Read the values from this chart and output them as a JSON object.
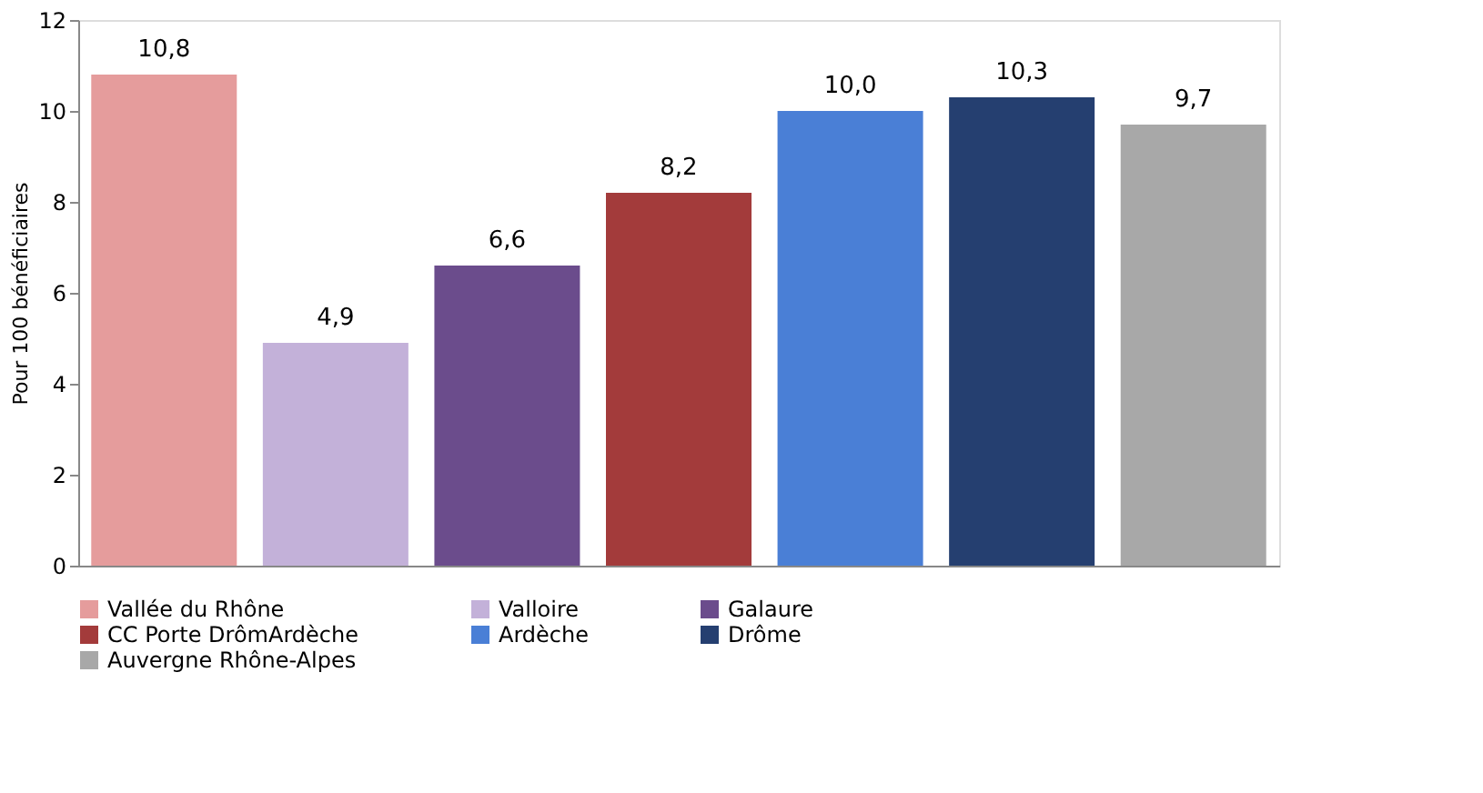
{
  "chart_data": {
    "type": "bar",
    "ylabel": "Pour 100 bénéficiaires",
    "categories": [
      null,
      null,
      null,
      null,
      null,
      null,
      null
    ],
    "ylim": [
      0,
      12
    ],
    "yticks": [
      0,
      2,
      4,
      6,
      8,
      10,
      12
    ],
    "grid": false,
    "legend": "bottom",
    "tick_labels": "y",
    "series": [
      {
        "name": "Vallée du Rhône",
        "color": "#e59c9c",
        "values": [
          10.8,
          null,
          null,
          null,
          null,
          null,
          null
        ],
        "value_labels": [
          "10,8",
          null,
          null,
          null,
          null,
          null,
          null
        ]
      },
      {
        "name": "Valloire",
        "color": "#c3b1d9",
        "values": [
          null,
          4.9,
          null,
          null,
          null,
          null,
          null
        ],
        "value_labels": [
          null,
          "4,9",
          null,
          null,
          null,
          null,
          null
        ]
      },
      {
        "name": "Galaure",
        "color": "#6b4c8c",
        "values": [
          null,
          null,
          6.6,
          null,
          null,
          null,
          null
        ],
        "value_labels": [
          null,
          null,
          "6,6",
          null,
          null,
          null,
          null
        ]
      },
      {
        "name": "CC Porte DrômArdèche",
        "color": "#a33b3b",
        "values": [
          null,
          null,
          null,
          8.2,
          null,
          null,
          null
        ],
        "value_labels": [
          null,
          null,
          null,
          "8,2",
          null,
          null,
          null
        ]
      },
      {
        "name": "Ardèche",
        "color": "#4a7fd6",
        "values": [
          null,
          null,
          null,
          null,
          10.0,
          null,
          null
        ],
        "value_labels": [
          null,
          null,
          null,
          null,
          "10,0",
          null,
          null
        ]
      },
      {
        "name": "Drôme",
        "color": "#253f70",
        "values": [
          null,
          null,
          null,
          null,
          null,
          10.3,
          null
        ],
        "value_labels": [
          null,
          null,
          null,
          null,
          null,
          "10,3",
          null
        ]
      },
      {
        "name": "Auvergne Rhône-Alpes",
        "color": "#a8a8a8",
        "values": [
          null,
          null,
          null,
          null,
          null,
          null,
          9.7
        ],
        "value_labels": [
          null,
          null,
          null,
          null,
          null,
          null,
          "9,7"
        ]
      }
    ]
  }
}
